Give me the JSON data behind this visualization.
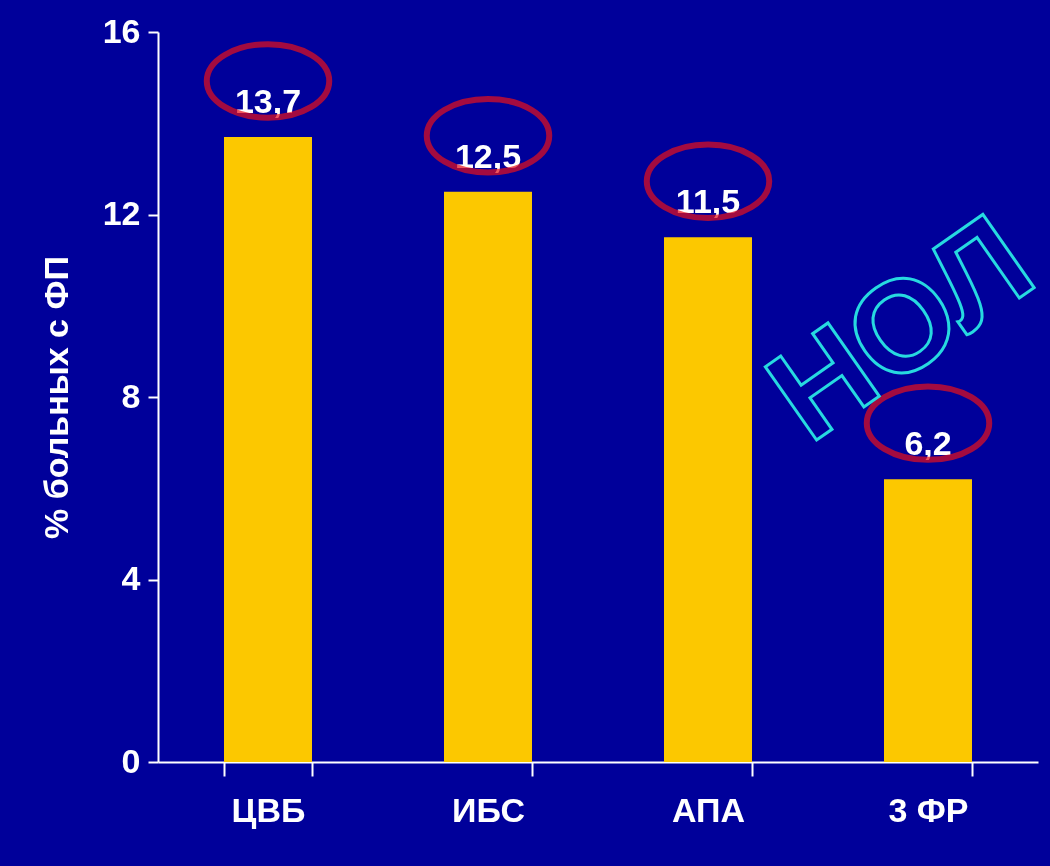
{
  "chart_data": {
    "type": "bar",
    "ylabel": "% больных с ФП",
    "categories": [
      "ЦВБ",
      "ИБС",
      "АПА",
      "3 ФР"
    ],
    "values": [
      13.7,
      12.5,
      11.5,
      6.2
    ],
    "value_labels": [
      "13,7",
      "12,5",
      "11,5",
      "6,2"
    ],
    "color": "#fcc800",
    "ylim": [
      0,
      16
    ],
    "yticks": [
      0,
      4,
      8,
      12,
      16
    ],
    "grid": false,
    "annotations": [
      "НОЛ"
    ]
  }
}
